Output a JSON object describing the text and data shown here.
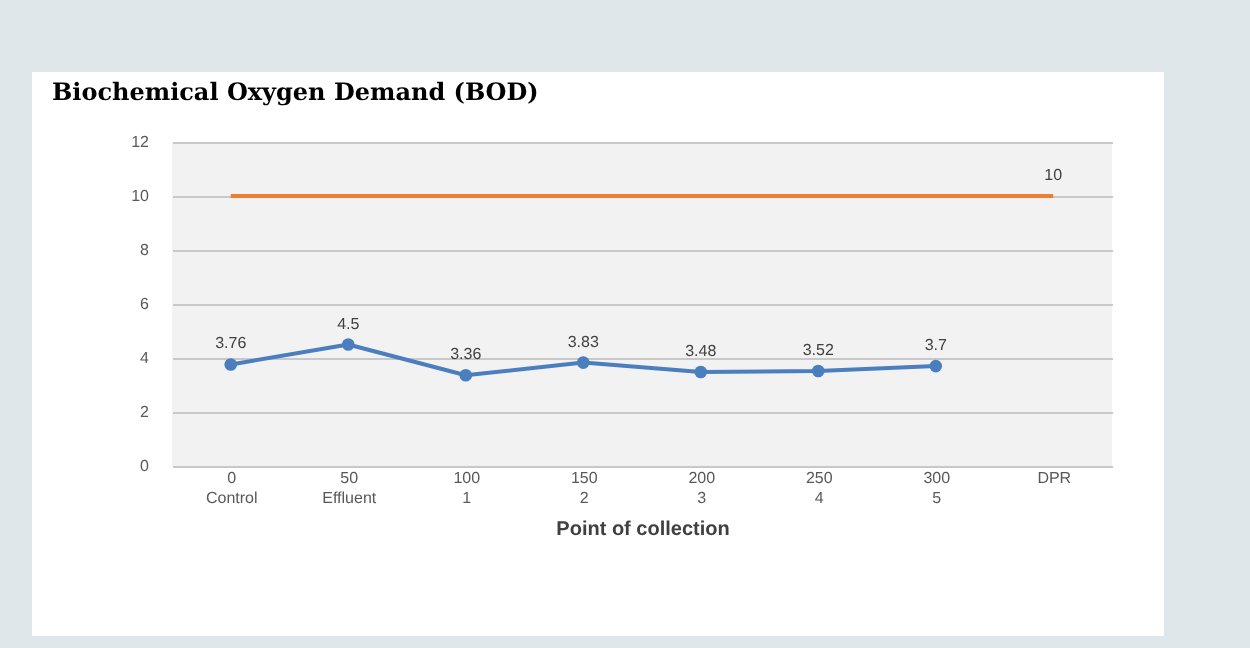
{
  "chart_data": {
    "type": "line",
    "title": "Biochemical Oxygen Demand (BOD)",
    "xlabel": "Point of collection",
    "categories": [
      "0\nControl",
      "50\nEffluent",
      "100\n1",
      "150\n2",
      "200\n3",
      "250\n4",
      "300\n5",
      "DPR"
    ],
    "series": [
      {
        "color": "#4a7ebf",
        "marker": "circle",
        "values": [
          3.76,
          4.5,
          3.36,
          3.83,
          3.48,
          3.52,
          3.7,
          null
        ],
        "value_labels": [
          "3.76",
          "4.5",
          "3.36",
          "3.83",
          "3.48",
          "3.52",
          "3.7",
          null
        ]
      },
      {
        "color": "#ed7d31",
        "marker": "none",
        "values": [
          10,
          10,
          10,
          10,
          10,
          10,
          10,
          10
        ],
        "value_labels": [
          null,
          null,
          null,
          null,
          null,
          null,
          null,
          "10"
        ]
      }
    ],
    "ylim": [
      0,
      12
    ],
    "yticks": [
      0,
      2,
      4,
      6,
      8,
      10,
      12
    ],
    "grid": "y",
    "line_style": "solid"
  }
}
